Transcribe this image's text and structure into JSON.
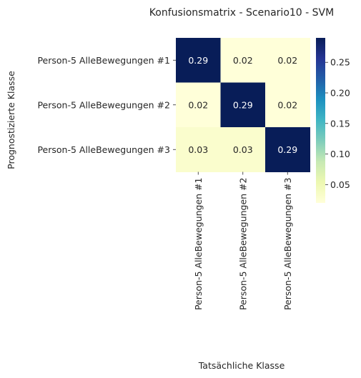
{
  "chart_data": {
    "type": "heatmap",
    "title": "Konfusionsmatrix - Scenario10 - SVM",
    "xlabel": "Tatsächliche Klasse",
    "ylabel": "Prognostizierte Klasse",
    "x_categories": [
      "Person-5 AlleBewegungen #1",
      "Person-5 AlleBewegungen #2",
      "Person-5 AlleBewegungen #3"
    ],
    "y_categories": [
      "Person-5 AlleBewegungen #1",
      "Person-5 AlleBewegungen #2",
      "Person-5 AlleBewegungen #3"
    ],
    "values": [
      [
        0.29,
        0.02,
        0.02
      ],
      [
        0.02,
        0.29,
        0.02
      ],
      [
        0.03,
        0.03,
        0.29
      ]
    ],
    "value_labels": [
      [
        "0.29",
        "0.02",
        "0.02"
      ],
      [
        "0.02",
        "0.29",
        "0.02"
      ],
      [
        "0.03",
        "0.03",
        "0.29"
      ]
    ],
    "colormap": "YlGnBu",
    "colorbar": {
      "vmin": 0.02,
      "vmax": 0.29,
      "ticks": [
        0.05,
        0.1,
        0.15,
        0.2,
        0.25
      ],
      "tick_labels": [
        "0.05",
        "0.10",
        "0.15",
        "0.20",
        "0.25"
      ]
    }
  }
}
